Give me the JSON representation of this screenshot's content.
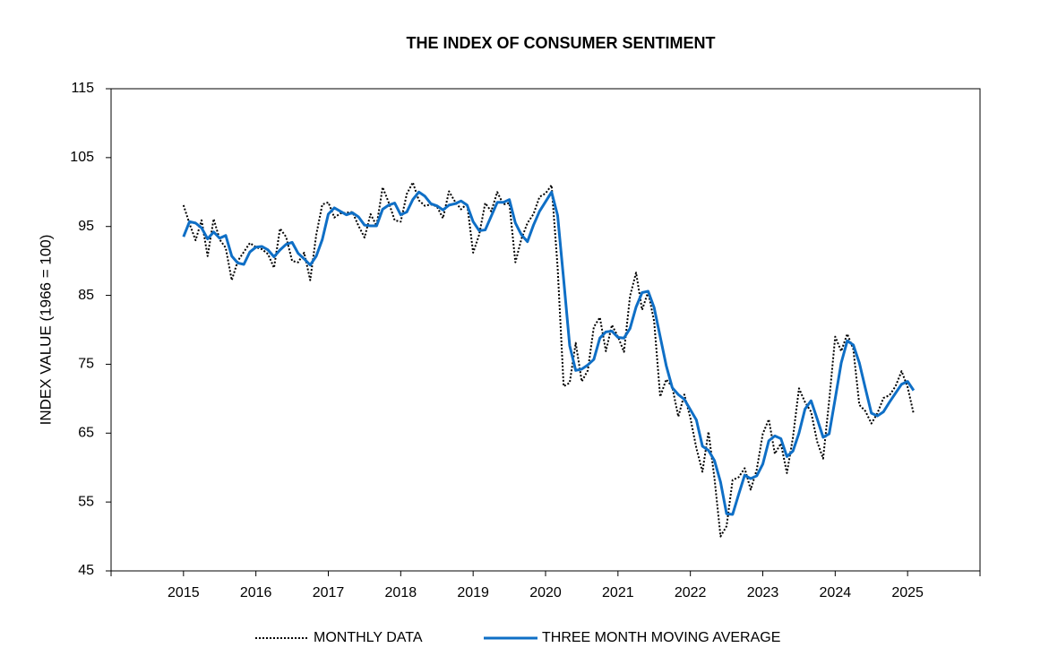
{
  "chart_data": {
    "type": "line",
    "title": "THE INDEX OF CONSUMER SENTIMENT",
    "y_label": "INDEX VALUE (1966 = 100)",
    "x": [
      2015,
      2015.0833,
      2015.1667,
      2015.25,
      2015.3333,
      2015.4167,
      2015.5,
      2015.5833,
      2015.6667,
      2015.75,
      2015.8333,
      2015.9167,
      2016,
      2016.0833,
      2016.1667,
      2016.25,
      2016.3333,
      2016.4167,
      2016.5,
      2016.5833,
      2016.6667,
      2016.75,
      2016.8333,
      2016.9167,
      2017,
      2017.0833,
      2017.1667,
      2017.25,
      2017.3333,
      2017.4167,
      2017.5,
      2017.5833,
      2017.6667,
      2017.75,
      2017.8333,
      2017.9167,
      2018,
      2018.0833,
      2018.1667,
      2018.25,
      2018.3333,
      2018.4167,
      2018.5,
      2018.5833,
      2018.6667,
      2018.75,
      2018.8333,
      2018.9167,
      2019,
      2019.0833,
      2019.1667,
      2019.25,
      2019.3333,
      2019.4167,
      2019.5,
      2019.5833,
      2019.6667,
      2019.75,
      2019.8333,
      2019.9167,
      2020,
      2020.0833,
      2020.1667,
      2020.25,
      2020.3333,
      2020.4167,
      2020.5,
      2020.5833,
      2020.6667,
      2020.75,
      2020.8333,
      2020.9167,
      2021,
      2021.0833,
      2021.1667,
      2021.25,
      2021.3333,
      2021.4167,
      2021.5,
      2021.5833,
      2021.6667,
      2021.75,
      2021.8333,
      2021.9167,
      2022,
      2022.0833,
      2022.1667,
      2022.25,
      2022.3333,
      2022.4167,
      2022.5,
      2022.5833,
      2022.6667,
      2022.75,
      2022.8333,
      2022.9167,
      2023,
      2023.0833,
      2023.1667,
      2023.25,
      2023.3333,
      2023.4167,
      2023.5,
      2023.5833,
      2023.6667,
      2023.75,
      2023.8333,
      2023.9167,
      2024,
      2024.0833,
      2024.1667,
      2024.25,
      2024.3333,
      2024.4167,
      2024.5,
      2024.5833,
      2024.6667,
      2024.75,
      2024.8333,
      2024.9167,
      2025,
      2025.0833
    ],
    "series": [
      {
        "name": "MONTHLY DATA",
        "color": "#000000",
        "line_style": "dotted",
        "values": [
          98.1,
          95.4,
          93.0,
          95.9,
          90.7,
          96.1,
          93.1,
          91.9,
          87.2,
          90.0,
          91.3,
          92.6,
          92.0,
          91.7,
          91.0,
          89.0,
          94.7,
          93.5,
          90.0,
          89.8,
          91.2,
          87.2,
          93.8,
          98.2,
          98.5,
          96.3,
          96.9,
          97.0,
          97.1,
          95.1,
          93.4,
          96.8,
          95.1,
          100.7,
          98.5,
          95.9,
          95.7,
          99.7,
          101.4,
          98.8,
          98.0,
          98.2,
          97.9,
          96.2,
          100.1,
          98.6,
          97.5,
          98.3,
          91.2,
          93.8,
          98.4,
          97.2,
          100.0,
          98.2,
          98.4,
          89.8,
          93.2,
          95.5,
          96.8,
          99.3,
          99.8,
          101.0,
          89.1,
          71.8,
          72.3,
          78.1,
          72.5,
          74.1,
          80.4,
          81.8,
          76.9,
          80.7,
          79.0,
          76.8,
          84.9,
          88.3,
          82.9,
          85.5,
          81.2,
          70.3,
          72.8,
          71.7,
          67.4,
          70.6,
          67.2,
          62.8,
          59.4,
          65.2,
          58.4,
          50.0,
          51.5,
          58.2,
          58.6,
          59.9,
          56.8,
          59.7,
          64.9,
          67.0,
          62.0,
          63.5,
          59.2,
          64.4,
          71.5,
          69.5,
          68.1,
          63.8,
          61.3,
          69.7,
          79.0,
          76.9,
          79.4,
          77.2,
          69.1,
          68.2,
          66.4,
          67.9,
          70.1,
          70.5,
          71.8,
          74.0,
          71.7,
          67.8
        ]
      },
      {
        "name": "THREE MONTH MOVING AVERAGE",
        "color": "#0f6fc6",
        "line_style": "solid",
        "values": [
          93.5,
          95.7,
          95.5,
          94.8,
          93.2,
          94.2,
          93.3,
          93.7,
          90.7,
          89.7,
          89.5,
          91.3,
          92.0,
          92.1,
          91.6,
          90.6,
          91.6,
          92.4,
          92.7,
          91.1,
          90.3,
          89.4,
          90.7,
          93.1,
          96.8,
          97.7,
          97.2,
          96.7,
          97.0,
          96.4,
          95.2,
          95.1,
          95.1,
          97.5,
          98.1,
          98.4,
          96.7,
          97.1,
          98.9,
          100.0,
          99.4,
          98.3,
          98.0,
          97.4,
          98.1,
          98.3,
          98.7,
          98.1,
          95.7,
          94.4,
          94.5,
          96.5,
          98.5,
          98.5,
          98.9,
          95.5,
          93.8,
          92.8,
          95.2,
          97.2,
          98.6,
          100.0,
          96.6,
          87.3,
          77.7,
          74.1,
          74.3,
          74.9,
          75.7,
          78.8,
          79.7,
          79.8,
          78.9,
          78.8,
          80.2,
          83.3,
          85.4,
          85.6,
          83.2,
          79.0,
          74.8,
          71.6,
          70.6,
          69.9,
          68.4,
          66.9,
          63.1,
          62.5,
          61.0,
          57.9,
          53.3,
          53.2,
          56.1,
          58.9,
          58.4,
          58.8,
          60.5,
          63.9,
          64.6,
          64.2,
          61.6,
          62.4,
          65.0,
          68.5,
          69.7,
          67.1,
          64.4,
          64.9,
          70.0,
          75.2,
          78.4,
          77.8,
          75.2,
          71.5,
          67.9,
          67.5,
          68.1,
          69.5,
          70.8,
          72.1,
          72.5,
          71.2
        ]
      }
    ],
    "xlim": [
      2014,
      2026
    ],
    "xticks": [
      2015,
      2016,
      2017,
      2018,
      2019,
      2020,
      2021,
      2022,
      2023,
      2024,
      2025
    ],
    "ylim": [
      45,
      115
    ],
    "yticks": [
      45,
      55,
      65,
      75,
      85,
      95,
      105,
      115
    ],
    "grid": false,
    "legend": "bottom"
  }
}
